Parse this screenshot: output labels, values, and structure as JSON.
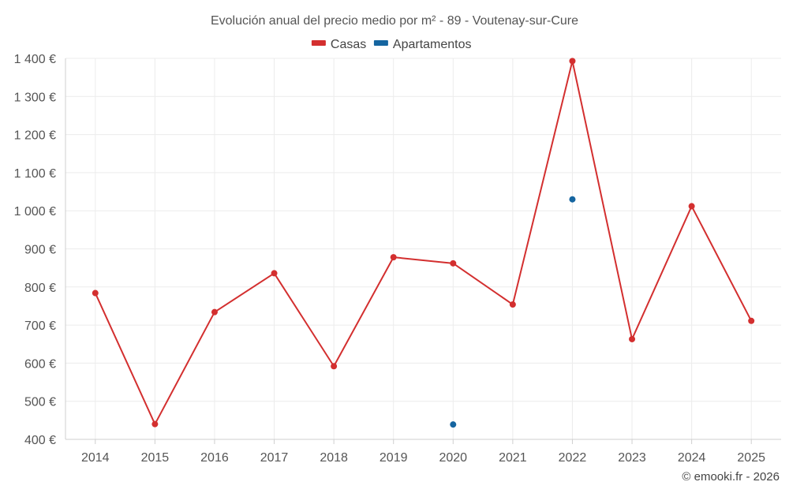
{
  "chart_data": {
    "type": "line",
    "title": "Evolución anual del precio medio por m² - 89 - Voutenay-sur-Cure",
    "categories": [
      "2014",
      "2015",
      "2016",
      "2017",
      "2018",
      "2019",
      "2020",
      "2021",
      "2022",
      "2023",
      "2024",
      "2025"
    ],
    "series": [
      {
        "name": "Casas",
        "color": "#d32f2f",
        "values": [
          784,
          440,
          734,
          836,
          592,
          878,
          862,
          754,
          1393,
          663,
          1012,
          711
        ]
      },
      {
        "name": "Apartamentos",
        "color": "#1565a0",
        "values": [
          null,
          null,
          null,
          null,
          null,
          null,
          439,
          null,
          1030,
          null,
          null,
          null
        ]
      }
    ],
    "ylim": [
      400,
      1400
    ],
    "yticks": [
      400,
      500,
      600,
      700,
      800,
      900,
      1000,
      1100,
      1200,
      1300,
      1400
    ],
    "ytick_labels": [
      "400 €",
      "500 €",
      "600 €",
      "700 €",
      "800 €",
      "900 €",
      "1 000 €",
      "1 100 €",
      "1 200 €",
      "1 300 €",
      "1 400 €"
    ],
    "xlabel": "",
    "ylabel": "",
    "grid": true,
    "legend_position": "top-center"
  },
  "footer": {
    "credit": "© emooki.fr - 2026"
  }
}
